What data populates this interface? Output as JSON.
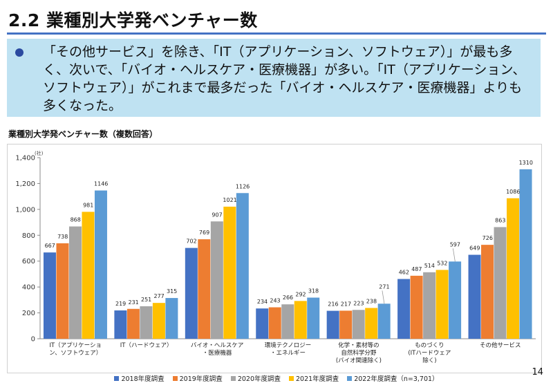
{
  "page": {
    "title": "2.2 業種別大学発ベンチャー数",
    "summary": "「その他サービス」を除き、「IT（アプリケーション、ソフトウェア）」が最も多く、次いで、「バイオ・ヘルスケア・医療機器」が多い。「IT（アプリケーション、ソフトウェア）」がこれまで最多だった「バイオ・ヘルスケア・医療機器」よりも多くなった。",
    "page_number": "14"
  },
  "colors": {
    "accent": "#4472c4",
    "callout_bg": "#bfe2f2"
  },
  "chart_data": {
    "type": "bar",
    "title": "業種別大学発ベンチャー数（複数回答）",
    "ylabel": "(社)",
    "ylim": [
      0,
      1400
    ],
    "yticks": [
      0,
      200,
      400,
      600,
      800,
      1000,
      1200,
      1400
    ],
    "ytick_labels": [
      "0",
      "200",
      "400",
      "600",
      "800",
      "1,000",
      "1,200",
      "1,400"
    ],
    "categories": [
      [
        "IT（アプリケーショ",
        "ン、ソフトウェア）"
      ],
      [
        "IT（ハードウェア）"
      ],
      [
        "バイオ・ヘルスケア",
        "・医療機器"
      ],
      [
        "環境テクノロジー",
        "・エネルギー"
      ],
      [
        "化学・素材等の",
        "自然科学分野",
        "(バイオ関連除く)"
      ],
      [
        "ものづくり",
        "(ITハードウェア",
        "除く)"
      ],
      [
        "その他サービス"
      ]
    ],
    "series": [
      {
        "name": "2018年度調査",
        "color": "#4472c4",
        "values": [
          667,
          219,
          702,
          234,
          216,
          462,
          649
        ]
      },
      {
        "name": "2019年度調査",
        "color": "#ed7d31",
        "values": [
          738,
          231,
          769,
          243,
          217,
          487,
          726
        ]
      },
      {
        "name": "2020年度調査",
        "color": "#a5a5a5",
        "values": [
          868,
          251,
          907,
          266,
          223,
          514,
          863
        ]
      },
      {
        "name": "2021年度調査",
        "color": "#ffc000",
        "values": [
          981,
          277,
          1021,
          292,
          238,
          532,
          1086
        ]
      },
      {
        "name": "2022年度調査（n=3,701）",
        "color": "#5b9bd5",
        "values": [
          1146,
          315,
          1126,
          318,
          271,
          597,
          1310
        ]
      }
    ],
    "legend_position": "bottom",
    "grid": false
  }
}
